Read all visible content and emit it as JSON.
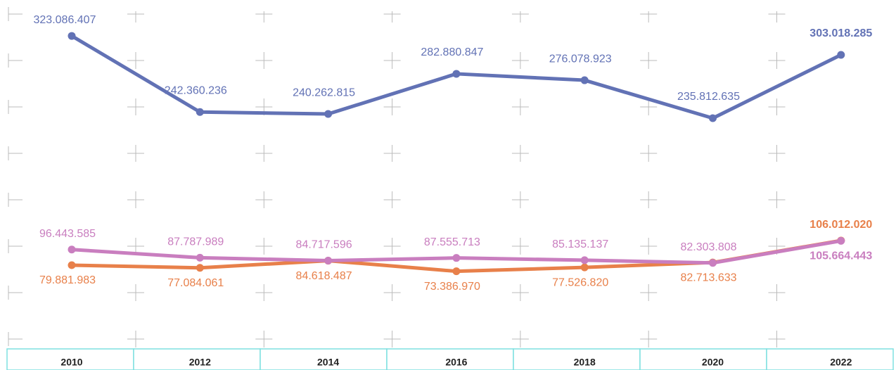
{
  "chart_data": {
    "type": "line",
    "categories": [
      "2010",
      "2012",
      "2014",
      "2016",
      "2018",
      "2020",
      "2022"
    ],
    "series": [
      {
        "color": "#6272b5",
        "values": [
          323086407,
          242360236,
          240262815,
          282880847,
          276078923,
          235812635,
          303018285
        ],
        "value_labels": [
          "323.086.407",
          "242.360.236",
          "240.262.815",
          "282.880.847",
          "276.078.923",
          "235.812.635",
          "303.018.285"
        ]
      },
      {
        "color": "#e8804a",
        "values": [
          79881983,
          77084061,
          84618487,
          73386970,
          77526820,
          82713633,
          106012020
        ],
        "value_labels": [
          "79.881.983",
          "77.084.061",
          "84.618.487",
          "73.386.970",
          "77.526.820",
          "82.713.633",
          "106.012.020"
        ]
      },
      {
        "color": "#c97ebf",
        "values": [
          96443585,
          87787989,
          84717596,
          87555713,
          85135137,
          82303808,
          105664443
        ],
        "value_labels": [
          "96.443.585",
          "87.787.989",
          "84.717.596",
          "87.555.713",
          "85.135.137",
          "82.303.808",
          "105.664.443"
        ]
      }
    ],
    "ylim": [
      0,
      350000000
    ]
  }
}
